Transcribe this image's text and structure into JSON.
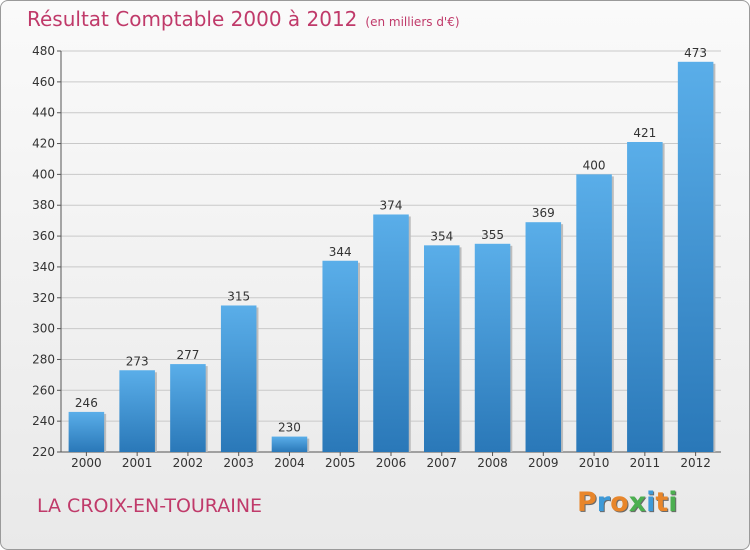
{
  "header": {
    "title": "Résultat Comptable 2000 à 2012",
    "subtitle": "(en milliers d'€)"
  },
  "footer": {
    "place": "LA CROIX-EN-TOURAINE",
    "logo": [
      "P",
      "r",
      "o",
      "x",
      "i",
      "t",
      "i"
    ],
    "logo_colors": [
      "#e8862b",
      "#3e9ad8",
      "#e8862b",
      "#4caf50",
      "#3e9ad8",
      "#e8862b",
      "#4caf50"
    ]
  },
  "chart_data": {
    "type": "bar",
    "title": "Résultat Comptable 2000 à 2012",
    "subtitle": "(en milliers d'€)",
    "categories": [
      "2000",
      "2001",
      "2002",
      "2003",
      "2004",
      "2005",
      "2006",
      "2007",
      "2008",
      "2009",
      "2010",
      "2011",
      "2012"
    ],
    "values": [
      246,
      273,
      277,
      315,
      230,
      344,
      374,
      354,
      355,
      369,
      400,
      421,
      473
    ],
    "ylim": [
      220,
      480
    ],
    "yticks": [
      220,
      240,
      260,
      280,
      300,
      320,
      340,
      360,
      380,
      400,
      420,
      440,
      460,
      480
    ],
    "xlabel": "",
    "ylabel": "",
    "grid": true,
    "bar_color": "#3a8fd1"
  }
}
